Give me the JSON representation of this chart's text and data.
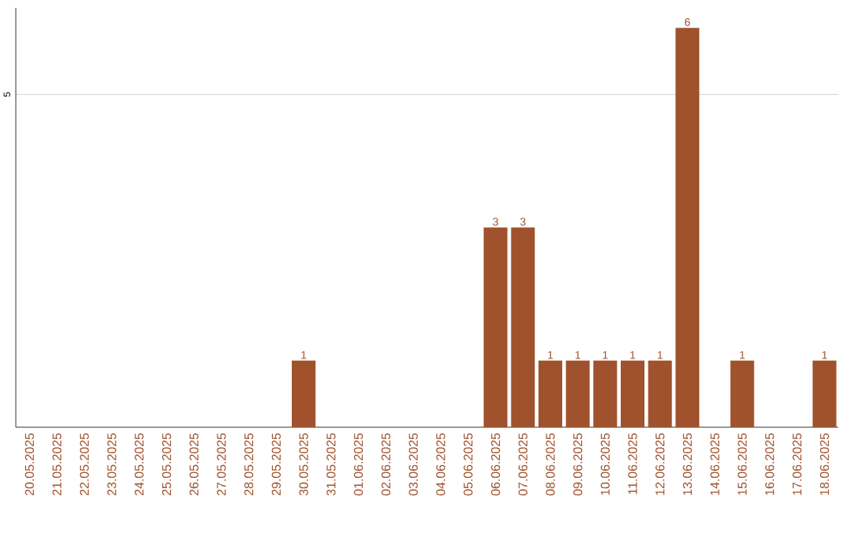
{
  "chart_data": {
    "type": "bar",
    "categories": [
      "20.05.2025",
      "21.05.2025",
      "22.05.2025",
      "23.05.2025",
      "24.05.2025",
      "25.05.2025",
      "26.05.2025",
      "27.05.2025",
      "28.05.2025",
      "29.05.2025",
      "30.05.2025",
      "31.05.2025",
      "01.06.2025",
      "02.06.2025",
      "03.06.2025",
      "04.06.2025",
      "05.06.2025",
      "06.06.2025",
      "07.06.2025",
      "08.06.2025",
      "09.06.2025",
      "10.06.2025",
      "11.06.2025",
      "12.06.2025",
      "13.06.2025",
      "14.06.2025",
      "15.06.2025",
      "16.06.2025",
      "17.06.2025",
      "18.06.2025"
    ],
    "values": [
      0,
      0,
      0,
      0,
      0,
      0,
      0,
      0,
      0,
      0,
      1,
      0,
      0,
      0,
      0,
      0,
      0,
      3,
      3,
      1,
      1,
      1,
      1,
      1,
      6,
      0,
      1,
      0,
      0,
      1
    ],
    "value_labels": [
      null,
      null,
      null,
      null,
      null,
      null,
      null,
      null,
      null,
      null,
      "1",
      null,
      null,
      null,
      null,
      null,
      null,
      "3",
      "3",
      "1",
      "1",
      "1",
      "1",
      "1",
      "6",
      null,
      "1",
      null,
      null,
      "1"
    ],
    "color": "#a0522d",
    "ylim": [
      0,
      6.3
    ],
    "yticks": [
      5
    ],
    "grid": "y"
  }
}
